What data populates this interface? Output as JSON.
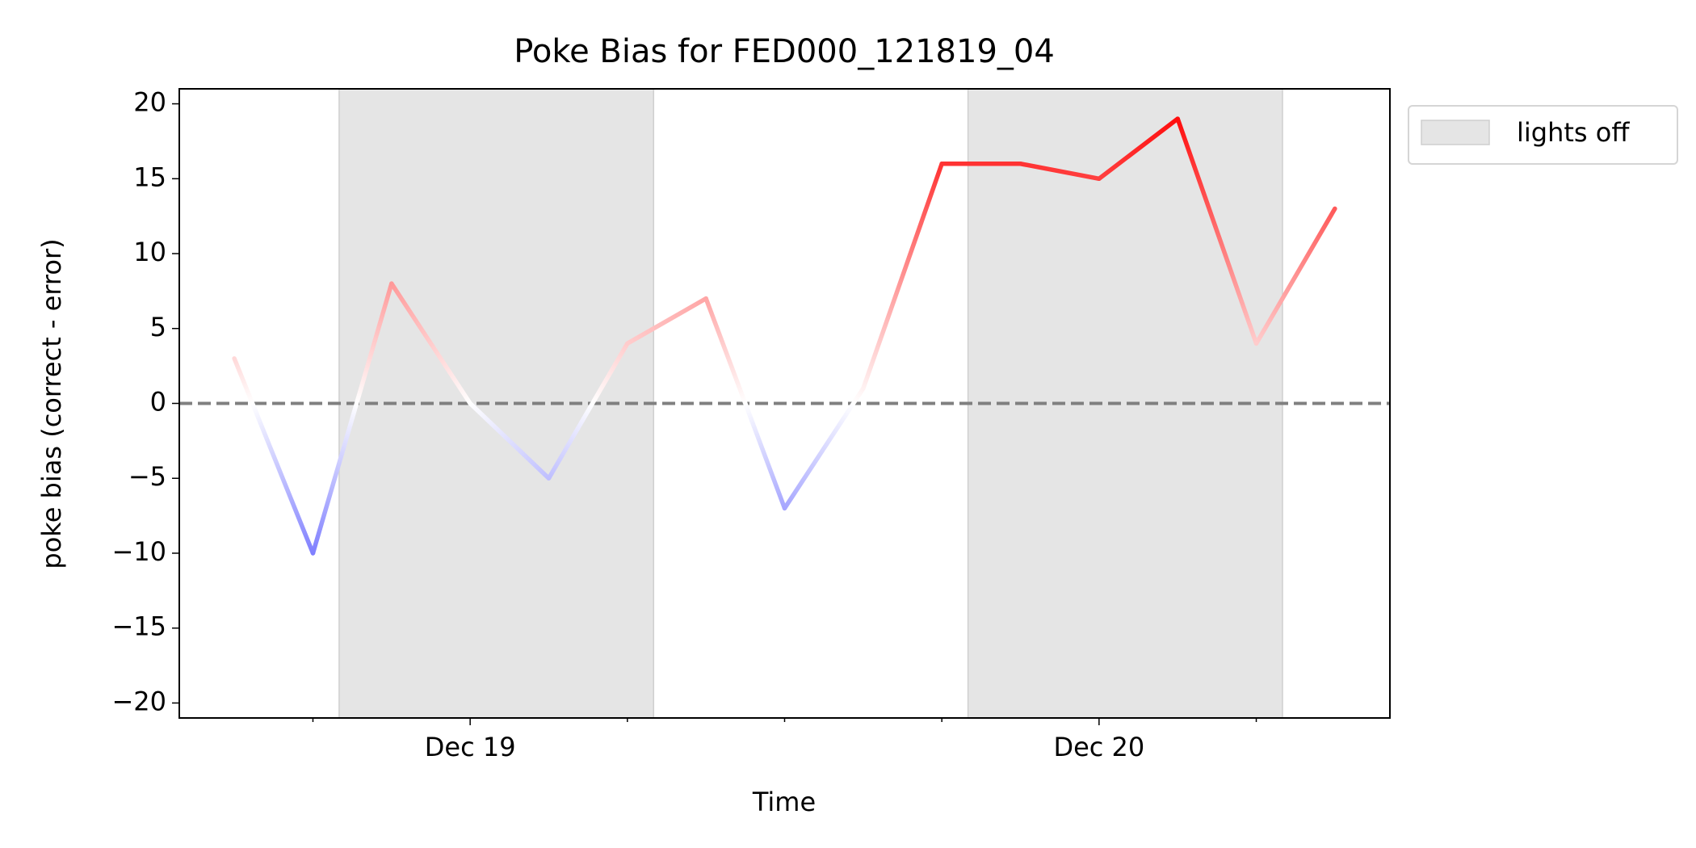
{
  "chart_data": {
    "type": "line",
    "title": "Poke Bias for FED000_121819_04",
    "xlabel": "Time",
    "ylabel": "poke bias (correct - error)",
    "x": [
      "Dec 18 15:00",
      "Dec 18 18:00",
      "Dec 18 21:00",
      "Dec 19 00:00",
      "Dec 19 03:00",
      "Dec 19 06:00",
      "Dec 19 09:00",
      "Dec 19 12:00",
      "Dec 19 15:00",
      "Dec 19 18:00",
      "Dec 19 21:00",
      "Dec 20 00:00",
      "Dec 20 03:00",
      "Dec 20 06:00",
      "Dec 20 09:00"
    ],
    "series": [
      {
        "values": [
          3,
          -10,
          8,
          0,
          -5,
          4,
          7,
          -7,
          1,
          16,
          16,
          15,
          19,
          4,
          13
        ],
        "cmap": "bwr",
        "clim": [
          -20,
          20
        ]
      }
    ],
    "xlim": [
      "Dec 18 12:54",
      "Dec 20 11:06"
    ],
    "xticks": [
      {
        "value": "Dec 19 00:00",
        "label": "Dec 19"
      },
      {
        "value": "Dec 20 00:00",
        "label": "Dec 20"
      }
    ],
    "xminorticks": [
      "Dec 18 18:00",
      "Dec 19 06:00",
      "Dec 19 12:00",
      "Dec 19 18:00",
      "Dec 20 06:00"
    ],
    "ylim": [
      -21,
      21
    ],
    "yticks": [
      {
        "value": -20,
        "label": "−20"
      },
      {
        "value": -15,
        "label": "−15"
      },
      {
        "value": -10,
        "label": "−10"
      },
      {
        "value": -5,
        "label": "−5"
      },
      0,
      5,
      10,
      15,
      20
    ],
    "hline": {
      "value": 0,
      "color": "#808080",
      "dashed": true
    },
    "shaded_regions": {
      "name": "lights off",
      "color": "#e5e5e5",
      "spans": [
        [
          "Dec 18 19:00",
          "Dec 19 07:00"
        ],
        [
          "Dec 19 19:00",
          "Dec 20 07:00"
        ]
      ]
    },
    "legend": "upper right outside"
  }
}
